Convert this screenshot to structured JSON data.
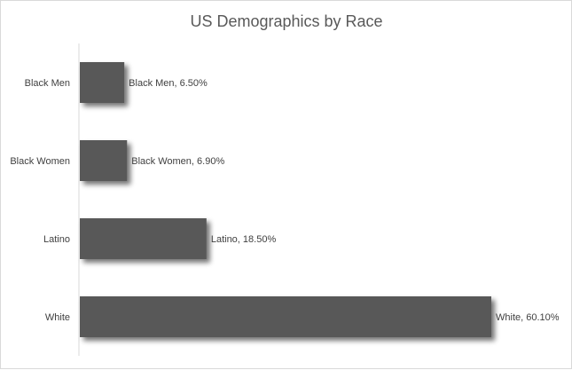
{
  "chart_data": {
    "type": "bar",
    "orientation": "horizontal",
    "title": "US Demographics by Race",
    "xlabel": "",
    "ylabel": "",
    "categories": [
      "Black Men",
      "Black Women",
      "Latino",
      "White"
    ],
    "values": [
      6.5,
      6.9,
      18.5,
      60.1
    ],
    "unit": "%",
    "data_labels": [
      "Black Men, 6.50%",
      "Black Women, 6.90%",
      "Latino, 18.50%",
      "White, 60.10%"
    ],
    "xlim": [
      0,
      65
    ],
    "grid": false,
    "legend": "none",
    "bar_color": "#595959",
    "shadow": true
  }
}
